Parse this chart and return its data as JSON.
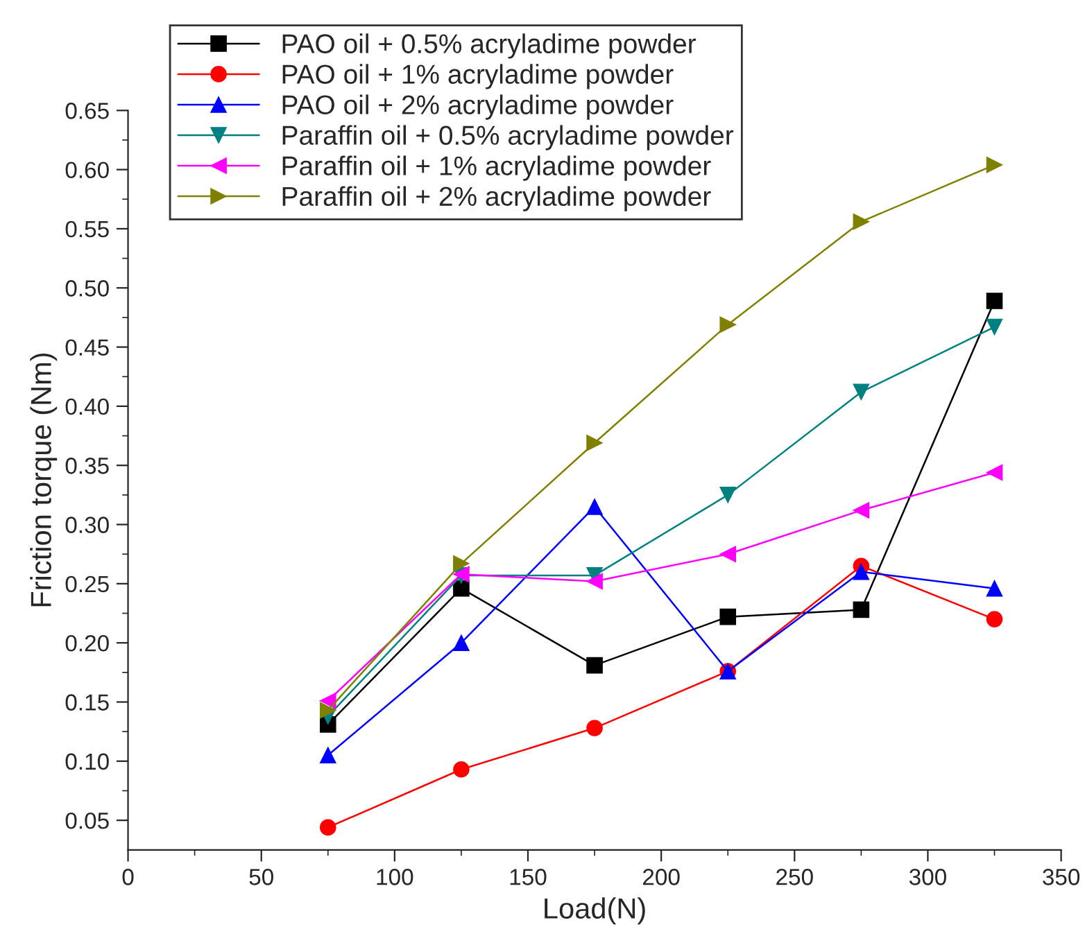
{
  "chart_data": {
    "type": "line",
    "xlabel": "Load(N)",
    "ylabel": "Friction torque (Nm)",
    "x": [
      75,
      125,
      175,
      225,
      275,
      325
    ],
    "series": [
      {
        "name": "PAO oil + 0.5% acryladime powder",
        "color": "#000000",
        "marker": "square",
        "values": [
          0.131,
          0.246,
          0.181,
          0.222,
          0.228,
          0.489
        ]
      },
      {
        "name": "PAO oil + 1% acryladime powder",
        "color": "#ff0000",
        "marker": "circle",
        "values": [
          0.044,
          0.093,
          0.128,
          0.176,
          0.265,
          0.22
        ]
      },
      {
        "name": "PAO oil + 2% acryladime powder",
        "color": "#0000ff",
        "marker": "triangle",
        "values": [
          0.105,
          0.2,
          0.315,
          0.176,
          0.26,
          0.246
        ]
      },
      {
        "name": "Paraffin oil + 0.5% acryladime powder",
        "color": "#008080",
        "marker": "triangle_down",
        "values": [
          0.138,
          0.257,
          0.257,
          0.325,
          0.412,
          0.467
        ]
      },
      {
        "name": "Paraffin oil + 1% acryladime powder",
        "color": "#ff00ff",
        "marker": "triangle_left",
        "values": [
          0.151,
          0.258,
          0.252,
          0.275,
          0.312,
          0.344
        ]
      },
      {
        "name": "Paraffin oil + 2% acryladime powder",
        "color": "#808000",
        "marker": "triangle_right",
        "values": [
          0.143,
          0.267,
          0.369,
          0.469,
          0.556,
          0.604
        ]
      }
    ],
    "xlim": [
      0,
      350
    ],
    "xticks": [
      0,
      {
        "value": 25,
        "label": null
      },
      50,
      {
        "value": 75,
        "label": null
      },
      100,
      {
        "value": 125,
        "label": null
      },
      150,
      {
        "value": 175,
        "label": null
      },
      200,
      {
        "value": 225,
        "label": null
      },
      250,
      {
        "value": 275,
        "label": null
      },
      300,
      {
        "value": 325,
        "label": null
      },
      350
    ],
    "ylim": [
      0.025,
      0.65
    ],
    "yticks": [
      {
        "value": 0.05,
        "label": "0.05"
      },
      {
        "value": 0.075,
        "label": null
      },
      {
        "value": 0.1,
        "label": "0.10"
      },
      {
        "value": 0.125,
        "label": null
      },
      {
        "value": 0.15,
        "label": "0.15"
      },
      {
        "value": 0.175,
        "label": null
      },
      {
        "value": 0.2,
        "label": "0.20"
      },
      {
        "value": 0.225,
        "label": null
      },
      {
        "value": 0.25,
        "label": "0.25"
      },
      {
        "value": 0.275,
        "label": null
      },
      {
        "value": 0.3,
        "label": "0.30"
      },
      {
        "value": 0.325,
        "label": null
      },
      {
        "value": 0.35,
        "label": "0.35"
      },
      {
        "value": 0.375,
        "label": null
      },
      {
        "value": 0.4,
        "label": "0.40"
      },
      {
        "value": 0.425,
        "label": null
      },
      {
        "value": 0.45,
        "label": "0.45"
      },
      {
        "value": 0.475,
        "label": null
      },
      {
        "value": 0.5,
        "label": "0.50"
      },
      {
        "value": 0.525,
        "label": null
      },
      {
        "value": 0.55,
        "label": "0.55"
      },
      {
        "value": 0.575,
        "label": null
      },
      {
        "value": 0.6,
        "label": "0.60"
      },
      {
        "value": 0.625,
        "label": null
      },
      {
        "value": 0.65,
        "label": "0.65"
      }
    ],
    "grid": false,
    "legend": "top left",
    "line_style": "solid"
  }
}
